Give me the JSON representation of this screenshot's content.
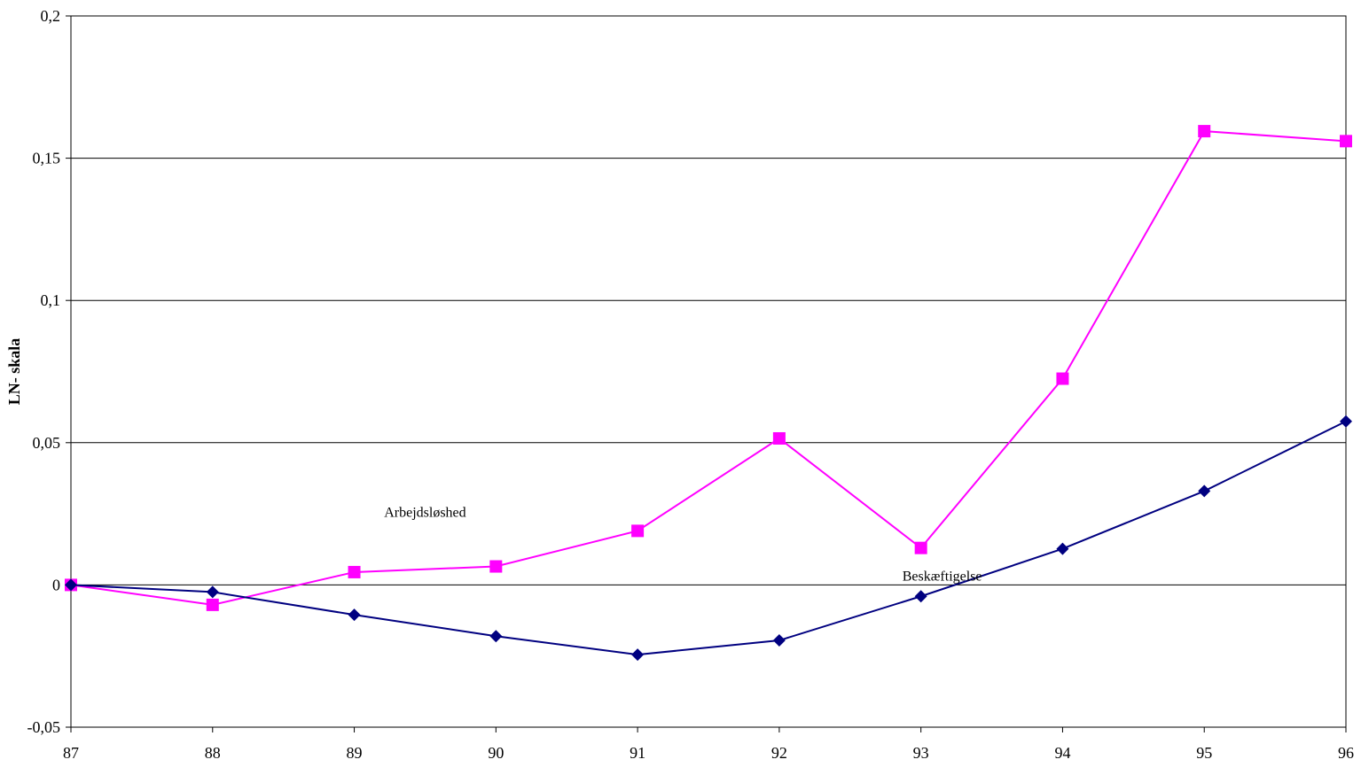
{
  "chart_data": {
    "type": "line",
    "title": "",
    "xlabel": "",
    "ylabel": "LN- skala",
    "categories": [
      "87",
      "88",
      "89",
      "90",
      "91",
      "92",
      "93",
      "94",
      "95",
      "96"
    ],
    "ylim": [
      -0.05,
      0.2
    ],
    "yticks": [
      -0.05,
      0,
      0.05,
      0.1,
      0.15,
      0.2
    ],
    "ytick_labels": [
      "-0,05",
      "0",
      "0,05",
      "0,1",
      "0,15",
      "0,2"
    ],
    "grid": "horizontal",
    "legend": "none",
    "series": [
      {
        "name": "Arbejdsløshed",
        "color": "#ff00ff",
        "marker": "square",
        "values": [
          0,
          -0.007,
          0.0045,
          0.0065,
          0.019,
          0.0515,
          0.013,
          0.0725,
          0.1595,
          0.156
        ]
      },
      {
        "name": "Beskæftigelse",
        "color": "#000080",
        "marker": "diamond",
        "values": [
          0,
          -0.0025,
          -0.0105,
          -0.018,
          -0.0245,
          -0.0195,
          -0.004,
          0.0127,
          0.033,
          0.0575
        ]
      }
    ],
    "annotations": [
      {
        "text": "Arbejdsløshed",
        "series": 0
      },
      {
        "text": "Beskæftigelse",
        "series": 1
      }
    ]
  }
}
